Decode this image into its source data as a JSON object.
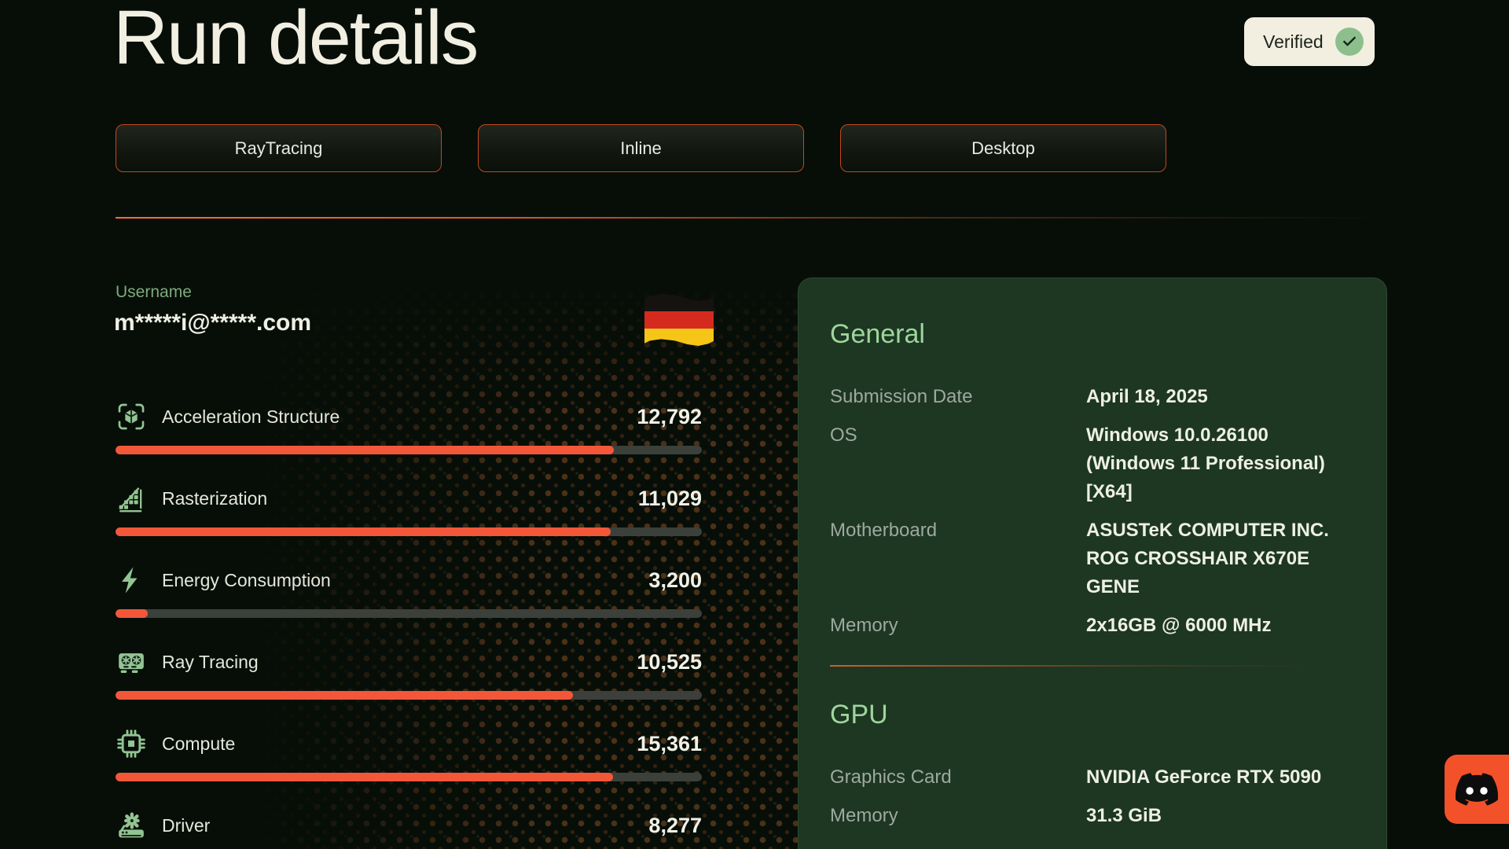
{
  "header": {
    "title": "Run details",
    "verified_label": "Verified"
  },
  "tabs": [
    {
      "label": "RayTracing"
    },
    {
      "label": "Inline"
    },
    {
      "label": "Desktop"
    }
  ],
  "user": {
    "label": "Username",
    "value": "m*****i@*****.com",
    "flag": "germany-flag"
  },
  "scores": {
    "rows": [
      {
        "icon": "acceleration-structure-icon",
        "label": "Acceleration Structure",
        "value": "12,792",
        "bar_percent": 85
      },
      {
        "icon": "rasterization-icon",
        "label": "Rasterization",
        "value": "11,029",
        "bar_percent": 84.5
      },
      {
        "icon": "energy-consumption-icon",
        "label": "Energy Consumption",
        "value": "3,200",
        "bar_percent": 5.5
      },
      {
        "icon": "ray-tracing-icon",
        "label": "Ray Tracing",
        "value": "10,525",
        "bar_percent": 78
      },
      {
        "icon": "compute-icon",
        "label": "Compute",
        "value": "15,361",
        "bar_percent": 84.8
      },
      {
        "icon": "driver-icon",
        "label": "Driver",
        "value": "8,277",
        "bar_percent": null
      }
    ]
  },
  "panel": {
    "general": {
      "title": "General",
      "rows": [
        {
          "label": "Submission Date",
          "value": "April 18, 2025"
        },
        {
          "label": "OS",
          "value": "Windows 10.0.26100 (Windows 11 Professional) [X64]"
        },
        {
          "label": "Motherboard",
          "value": "ASUSTeK COMPUTER INC. ROG CROSSHAIR X670E GENE"
        },
        {
          "label": "Memory",
          "value": "2x16GB @ 6000 MHz"
        }
      ]
    },
    "gpu": {
      "title": "GPU",
      "rows": [
        {
          "label": "Graphics Card",
          "value": "NVIDIA GeForce RTX 5090"
        },
        {
          "label": "Memory",
          "value": "31.3 GiB"
        }
      ]
    }
  },
  "colors": {
    "page_bg": "#070e08",
    "accent_orange": "#f3573a",
    "tab_border_orange": "#c2481d",
    "bar_track": "#3b403b",
    "panel_bg": "#1d3723",
    "heading_green": "#9ed69b",
    "icon_green": "#93c493",
    "verified_bg": "#f2efe1",
    "verified_check_green": "#8dbf8d",
    "discord_orange": "#f2512a"
  }
}
